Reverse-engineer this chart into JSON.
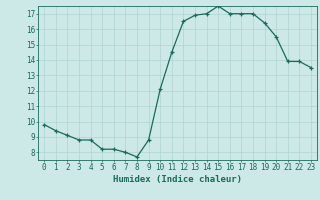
{
  "x": [
    0,
    1,
    2,
    3,
    4,
    5,
    6,
    7,
    8,
    9,
    10,
    11,
    12,
    13,
    14,
    15,
    16,
    17,
    18,
    19,
    20,
    21,
    22,
    23
  ],
  "y": [
    9.8,
    9.4,
    9.1,
    8.8,
    8.8,
    8.2,
    8.2,
    8.0,
    7.7,
    8.8,
    12.1,
    14.5,
    16.5,
    16.9,
    17.0,
    17.5,
    17.0,
    17.0,
    17.0,
    16.4,
    15.5,
    13.9,
    13.9,
    13.5
  ],
  "xlabel": "Humidex (Indice chaleur)",
  "xlim": [
    -0.5,
    23.5
  ],
  "ylim": [
    7.5,
    17.5
  ],
  "yticks": [
    8,
    9,
    10,
    11,
    12,
    13,
    14,
    15,
    16,
    17
  ],
  "xticks": [
    0,
    1,
    2,
    3,
    4,
    5,
    6,
    7,
    8,
    9,
    10,
    11,
    12,
    13,
    14,
    15,
    16,
    17,
    18,
    19,
    20,
    21,
    22,
    23
  ],
  "line_color": "#1a6b5a",
  "marker": "+",
  "bg_color": "#cce9e7",
  "grid_color": "#b0d4d1",
  "label_color": "#1a6b5a",
  "xlabel_fontsize": 6.5,
  "tick_fontsize": 5.5
}
